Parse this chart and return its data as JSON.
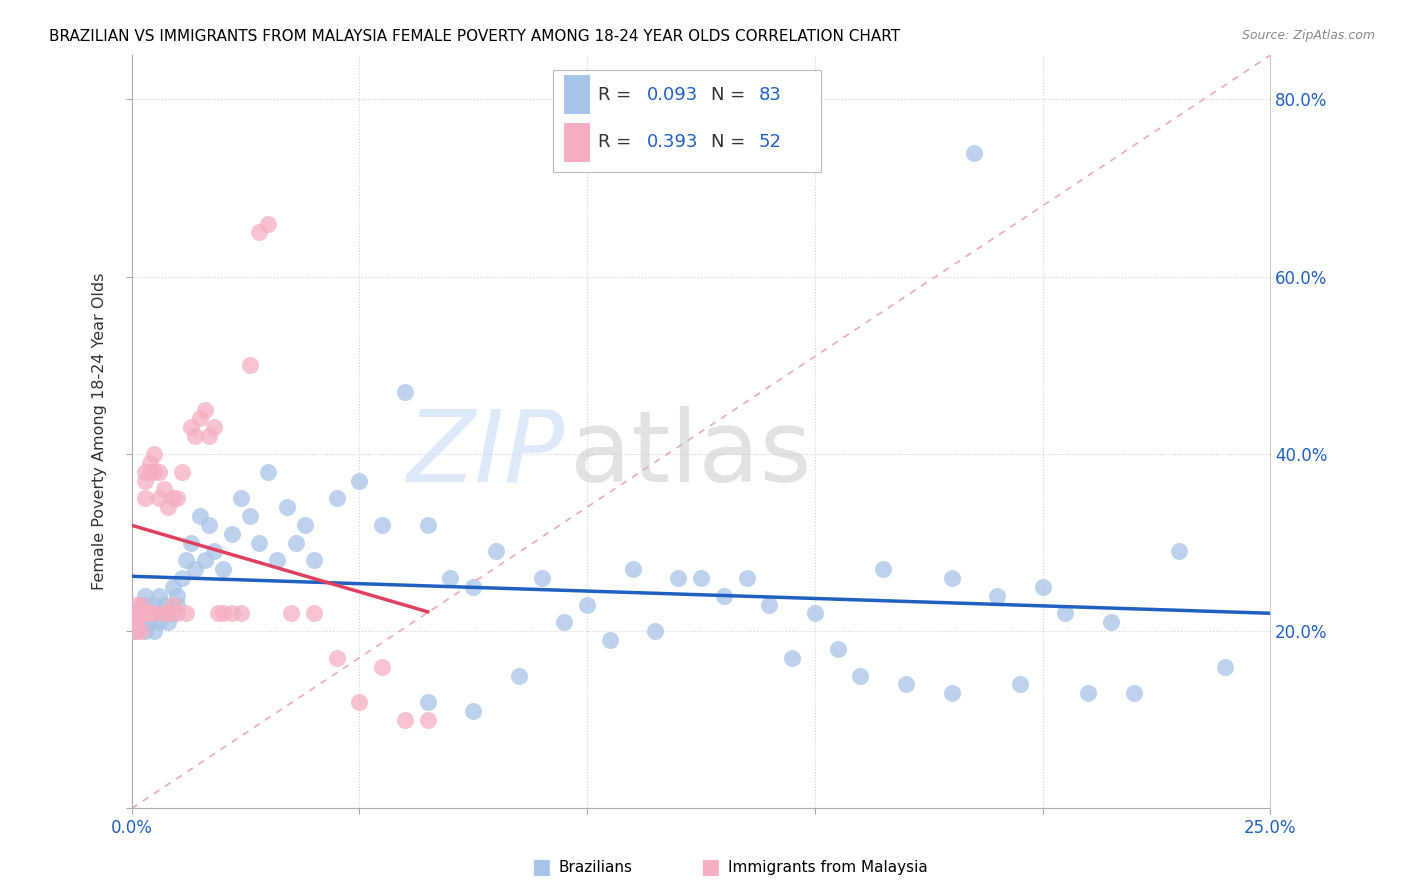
{
  "title": "BRAZILIAN VS IMMIGRANTS FROM MALAYSIA FEMALE POVERTY AMONG 18-24 YEAR OLDS CORRELATION CHART",
  "source": "Source: ZipAtlas.com",
  "ylabel": "Female Poverty Among 18-24 Year Olds",
  "xlim": [
    0.0,
    0.25
  ],
  "ylim": [
    0.0,
    0.85
  ],
  "blue_R": "0.093",
  "blue_N": "83",
  "pink_R": "0.393",
  "pink_N": "52",
  "blue_color": "#a8c4e8",
  "pink_color": "#f5afc0",
  "blue_line_color": "#2060c0",
  "pink_line_color": "#e04060",
  "diagonal_color": "#e8a0b0",
  "text_color": "#2060c0",
  "blue_x": [
    0.001,
    0.001,
    0.001,
    0.002,
    0.002,
    0.002,
    0.003,
    0.003,
    0.003,
    0.004,
    0.004,
    0.005,
    0.005,
    0.005,
    0.006,
    0.006,
    0.007,
    0.007,
    0.008,
    0.008,
    0.009,
    0.009,
    0.01,
    0.01,
    0.011,
    0.012,
    0.013,
    0.014,
    0.015,
    0.016,
    0.017,
    0.018,
    0.02,
    0.022,
    0.024,
    0.026,
    0.028,
    0.03,
    0.032,
    0.034,
    0.036,
    0.038,
    0.04,
    0.045,
    0.05,
    0.055,
    0.06,
    0.065,
    0.07,
    0.075,
    0.08,
    0.09,
    0.1,
    0.11,
    0.12,
    0.13,
    0.14,
    0.15,
    0.16,
    0.17,
    0.18,
    0.185,
    0.19,
    0.2,
    0.21,
    0.22,
    0.23,
    0.24,
    0.18,
    0.195,
    0.205,
    0.215,
    0.165,
    0.155,
    0.145,
    0.135,
    0.125,
    0.115,
    0.105,
    0.095,
    0.085,
    0.075,
    0.065
  ],
  "blue_y": [
    0.22,
    0.21,
    0.2,
    0.23,
    0.22,
    0.21,
    0.24,
    0.2,
    0.23,
    0.22,
    0.21,
    0.23,
    0.22,
    0.2,
    0.24,
    0.21,
    0.22,
    0.23,
    0.22,
    0.21,
    0.22,
    0.25,
    0.23,
    0.24,
    0.26,
    0.28,
    0.3,
    0.27,
    0.33,
    0.28,
    0.32,
    0.29,
    0.27,
    0.31,
    0.35,
    0.33,
    0.3,
    0.38,
    0.28,
    0.34,
    0.3,
    0.32,
    0.28,
    0.35,
    0.37,
    0.32,
    0.47,
    0.32,
    0.26,
    0.25,
    0.29,
    0.26,
    0.23,
    0.27,
    0.26,
    0.24,
    0.23,
    0.22,
    0.15,
    0.14,
    0.26,
    0.74,
    0.24,
    0.25,
    0.13,
    0.13,
    0.29,
    0.16,
    0.13,
    0.14,
    0.22,
    0.21,
    0.27,
    0.18,
    0.17,
    0.26,
    0.26,
    0.2,
    0.19,
    0.21,
    0.15,
    0.11,
    0.12
  ],
  "pink_x": [
    0.001,
    0.001,
    0.001,
    0.001,
    0.001,
    0.001,
    0.002,
    0.002,
    0.002,
    0.002,
    0.003,
    0.003,
    0.003,
    0.003,
    0.004,
    0.004,
    0.004,
    0.005,
    0.005,
    0.005,
    0.006,
    0.006,
    0.007,
    0.007,
    0.008,
    0.008,
    0.009,
    0.009,
    0.01,
    0.01,
    0.011,
    0.012,
    0.013,
    0.014,
    0.015,
    0.016,
    0.017,
    0.018,
    0.019,
    0.02,
    0.022,
    0.024,
    0.026,
    0.028,
    0.03,
    0.035,
    0.04,
    0.045,
    0.05,
    0.055,
    0.06,
    0.065
  ],
  "pink_y": [
    0.22,
    0.21,
    0.23,
    0.2,
    0.22,
    0.21,
    0.22,
    0.2,
    0.23,
    0.22,
    0.35,
    0.37,
    0.38,
    0.22,
    0.38,
    0.39,
    0.22,
    0.4,
    0.38,
    0.22,
    0.35,
    0.38,
    0.36,
    0.22,
    0.34,
    0.22,
    0.35,
    0.23,
    0.35,
    0.22,
    0.38,
    0.22,
    0.43,
    0.42,
    0.44,
    0.45,
    0.42,
    0.43,
    0.22,
    0.22,
    0.22,
    0.22,
    0.5,
    0.65,
    0.66,
    0.22,
    0.22,
    0.17,
    0.12,
    0.16,
    0.1,
    0.1
  ]
}
